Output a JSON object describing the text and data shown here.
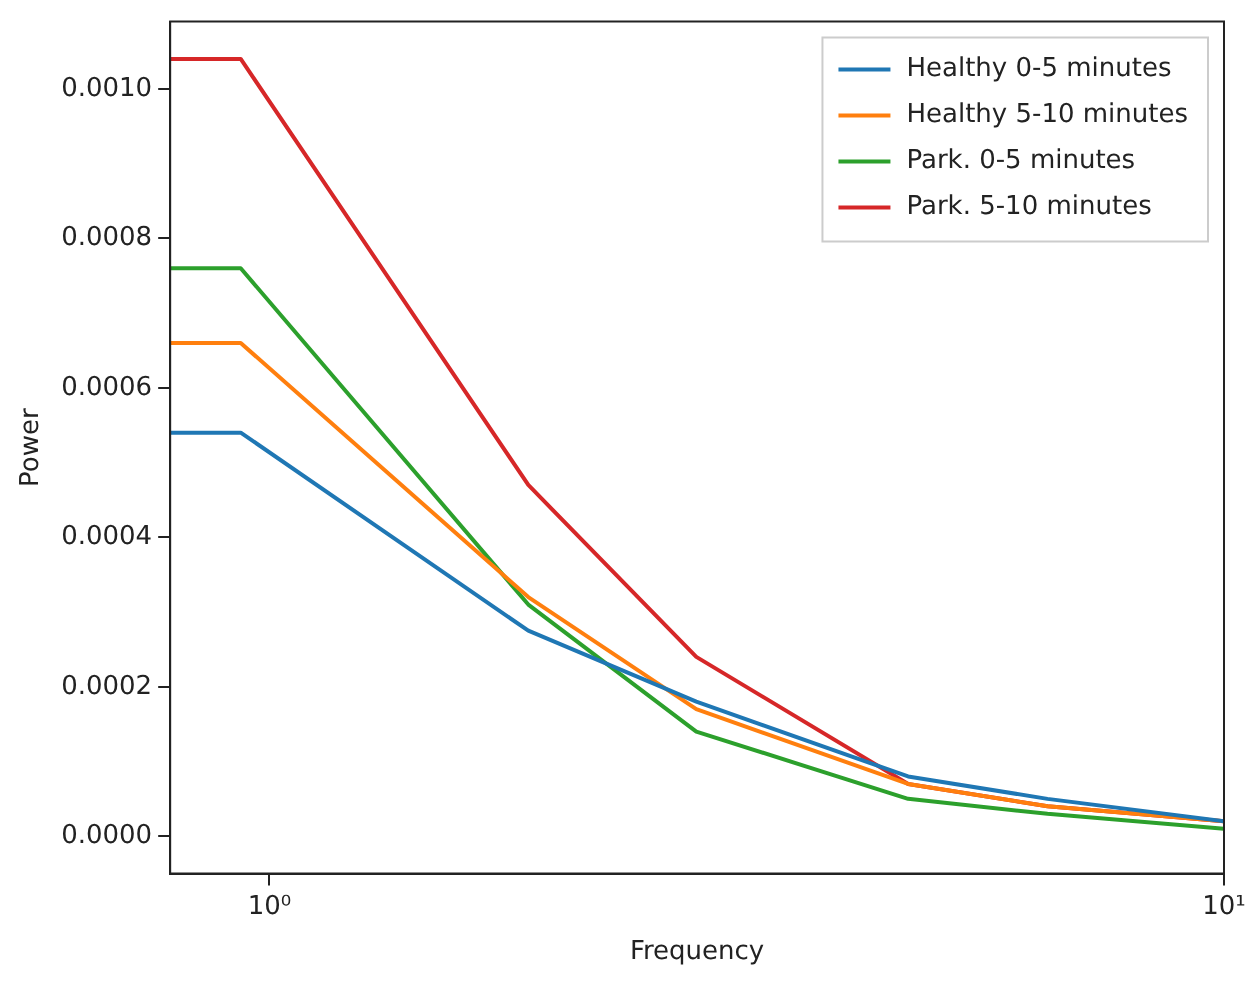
{
  "chart_data": {
    "type": "line",
    "xlabel": "Frequency",
    "ylabel": "Power",
    "log": "x",
    "xlim": [
      0.787,
      10
    ],
    "xticks": [
      {
        "value": 1,
        "label": "10⁰"
      },
      {
        "value": 10,
        "label": "10¹"
      }
    ],
    "ylim": [
      -5e-05,
      0.00109
    ],
    "yticks": [
      {
        "value": 0,
        "label": "0.0000"
      },
      {
        "value": 0.0002,
        "label": "0.0002"
      },
      {
        "value": 0.0004,
        "label": "0.0004"
      },
      {
        "value": 0.0006,
        "label": "0.0006"
      },
      {
        "value": 0.0008,
        "label": "0.0008"
      },
      {
        "value": 0.001,
        "label": "0.0010"
      }
    ],
    "x": [
      0.787,
      0.933,
      1.867,
      2.8,
      4.667,
      6.533,
      10
    ],
    "grid": false,
    "legend": "top right",
    "marker": "none",
    "line_style": "solid",
    "series": [
      {
        "name": "Healthy 0-5 minutes",
        "color": "#1f77b4",
        "values": [
          0.00054,
          0.00054,
          0.000275,
          0.00018,
          8e-05,
          5e-05,
          2e-05
        ]
      },
      {
        "name": "Healthy 5-10 minutes",
        "color": "#ff7f0e",
        "values": [
          0.00066,
          0.00066,
          0.00032,
          0.00017,
          7e-05,
          4e-05,
          2e-05
        ]
      },
      {
        "name": "Park. 0-5 minutes",
        "color": "#2ca02c",
        "values": [
          0.00076,
          0.00076,
          0.00031,
          0.00014,
          5e-05,
          3e-05,
          1e-05
        ]
      },
      {
        "name": "Park. 5-10 minutes",
        "color": "#d62728",
        "values": [
          0.00104,
          0.00104,
          0.00047,
          0.00024,
          7e-05,
          4e-05,
          2e-05
        ]
      }
    ]
  }
}
